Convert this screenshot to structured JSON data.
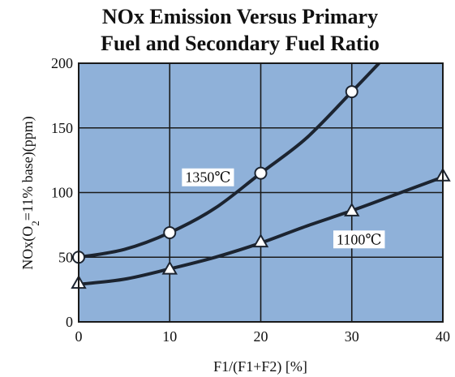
{
  "chart_data": {
    "type": "line",
    "title_line1": "NOx Emission Versus Primary",
    "title_line2": "Fuel and Secondary Fuel Ratio",
    "xlabel": "F1/(F1+F2) [%]",
    "ylabel": "NOx(O2=11% base)(ppm)",
    "xlim": [
      0,
      40
    ],
    "ylim": [
      0,
      200
    ],
    "x_ticks": [
      "0",
      "10",
      "20",
      "30",
      "40"
    ],
    "y_ticks": [
      "0",
      "50",
      "100",
      "150",
      "200"
    ],
    "grid": true,
    "plot_background": "#8fb1d9",
    "series": [
      {
        "name": "1350℃",
        "marker": "circle",
        "x": [
          0,
          10,
          20,
          30
        ],
        "y": [
          50,
          69,
          115,
          178
        ],
        "curve": [
          [
            0,
            50
          ],
          [
            5,
            56
          ],
          [
            10,
            69
          ],
          [
            15,
            88
          ],
          [
            20,
            115
          ],
          [
            25,
            142
          ],
          [
            30,
            178
          ],
          [
            33,
            200
          ]
        ]
      },
      {
        "name": "1100℃",
        "marker": "triangle",
        "x": [
          0,
          10,
          20,
          30,
          40
        ],
        "y": [
          30,
          41,
          62,
          86,
          113
        ],
        "curve": [
          [
            0,
            29
          ],
          [
            5,
            33
          ],
          [
            10,
            41
          ],
          [
            15,
            50
          ],
          [
            20,
            61
          ],
          [
            25,
            74
          ],
          [
            30,
            86
          ],
          [
            35,
            99
          ],
          [
            40,
            112
          ]
        ]
      }
    ]
  }
}
